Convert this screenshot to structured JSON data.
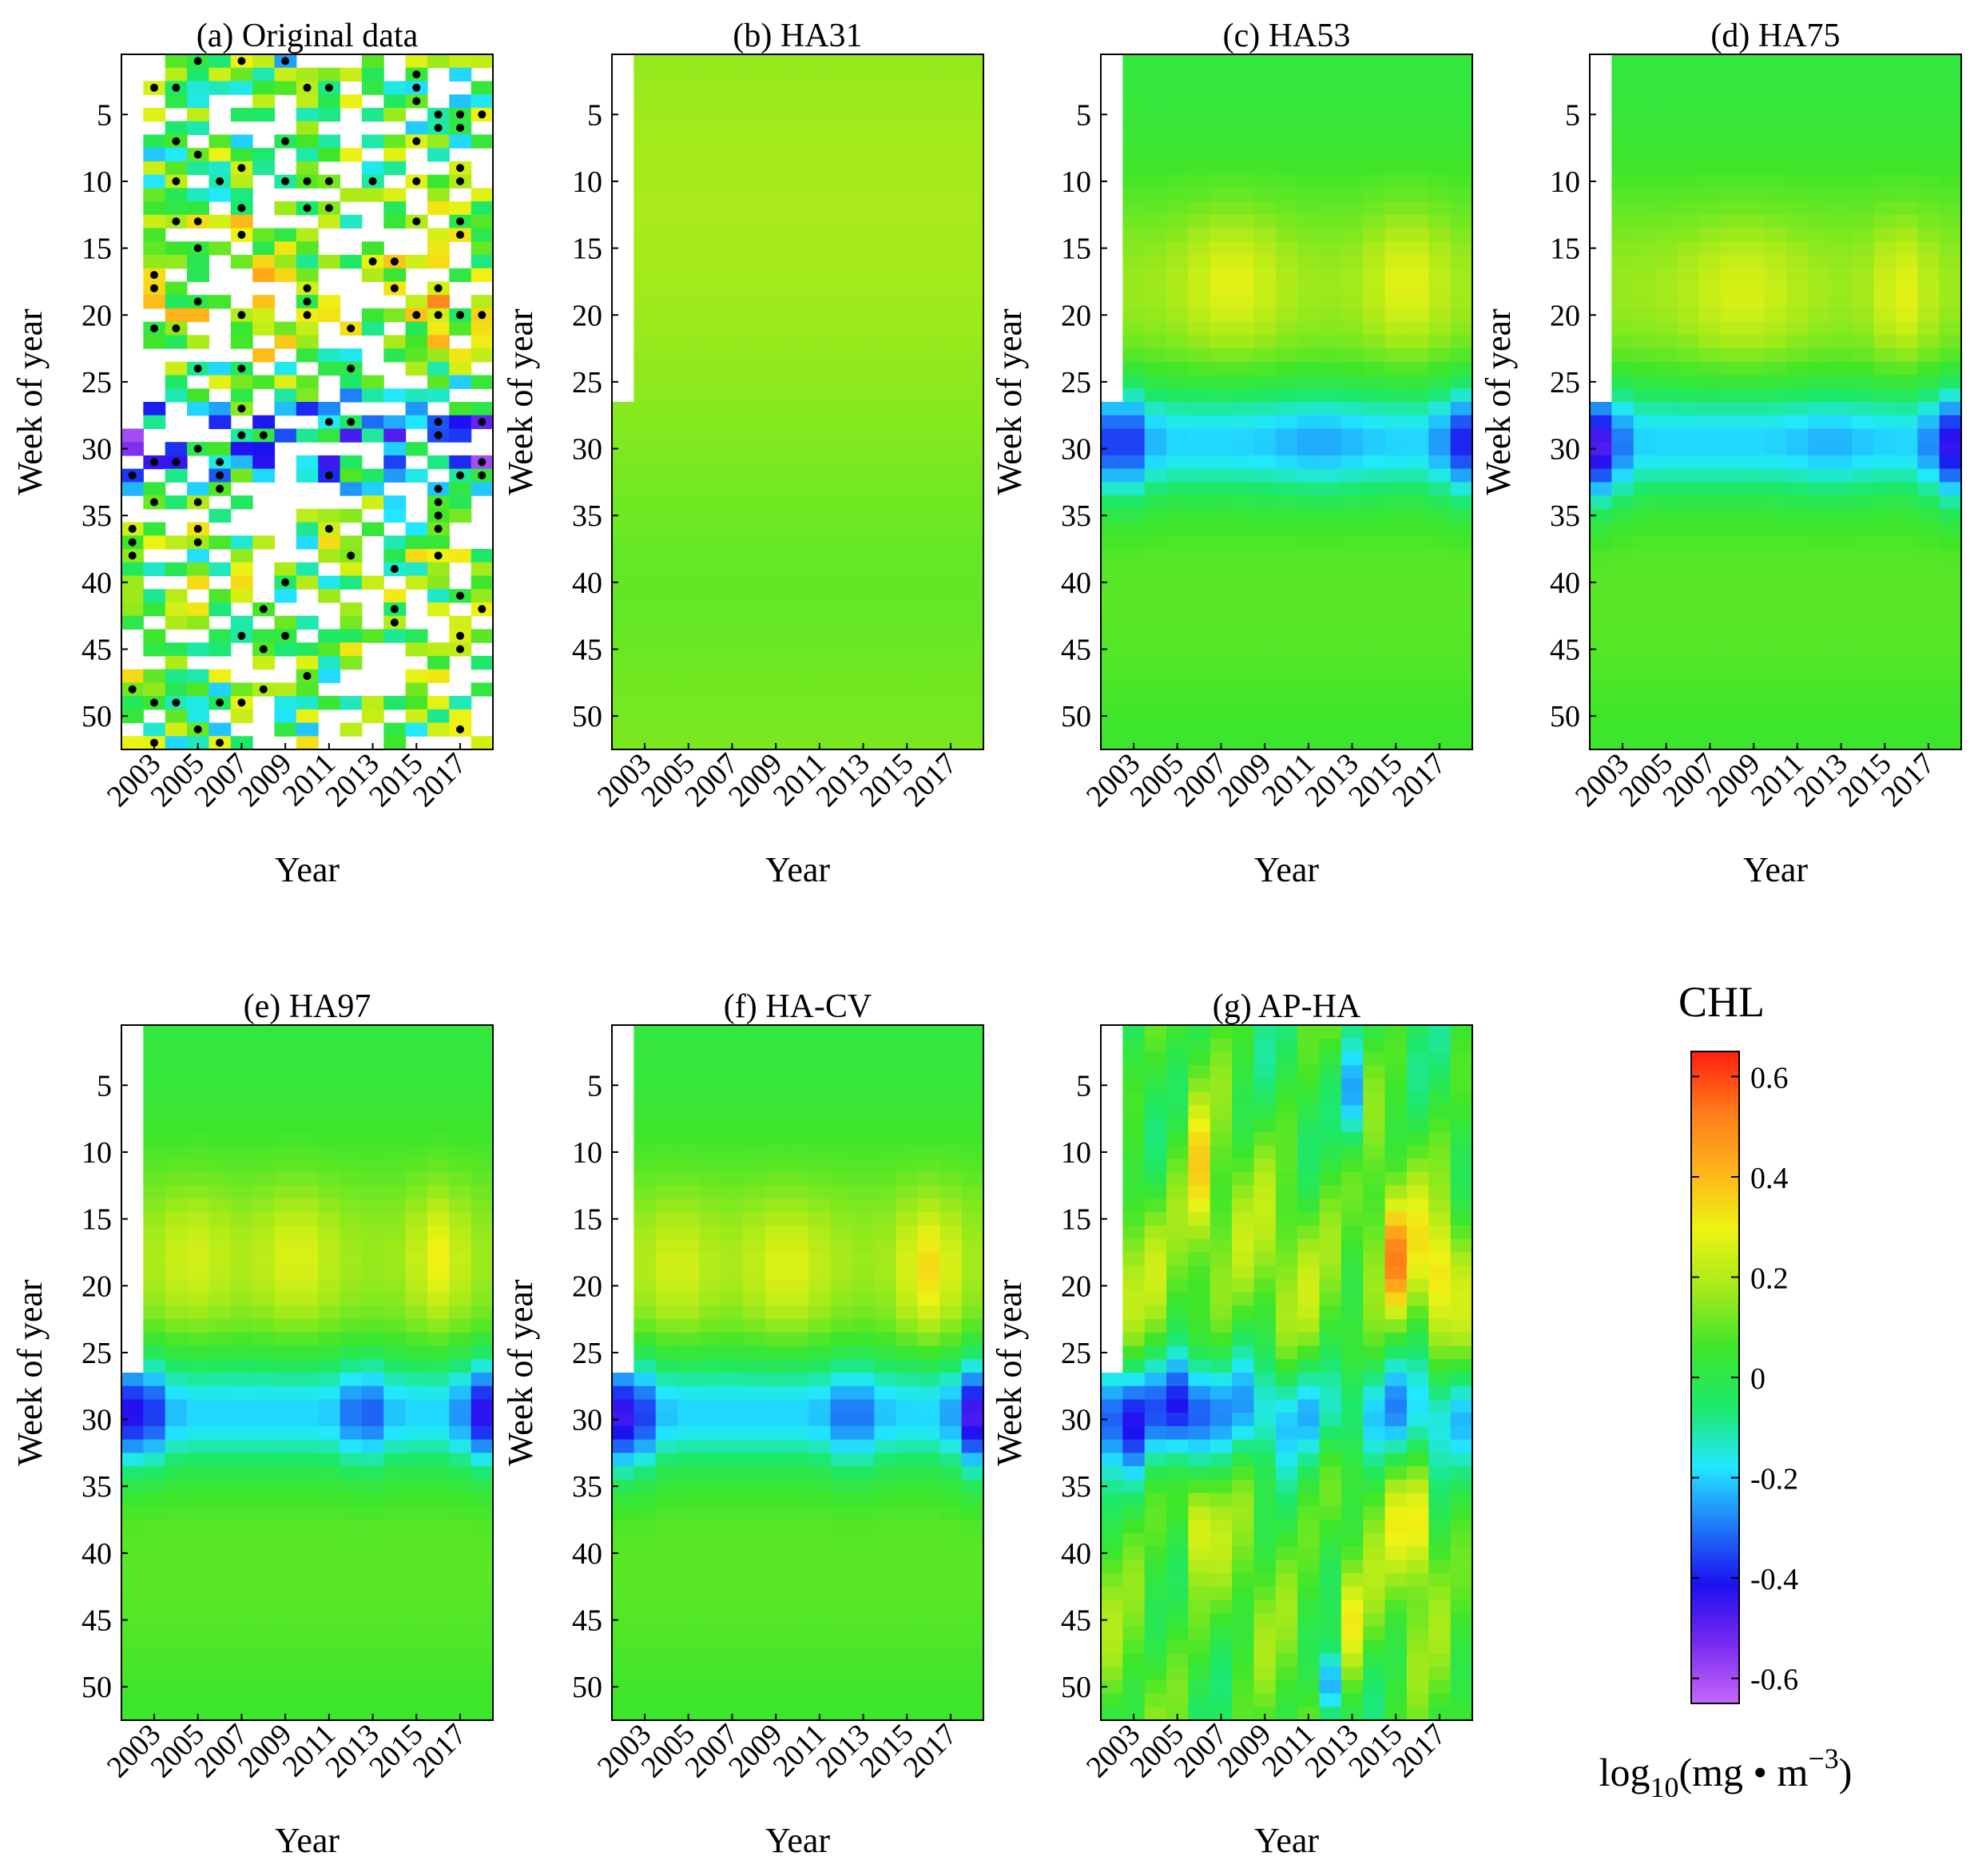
{
  "figure": {
    "xlabel": "Year",
    "ylabel": "Week of year",
    "year_ticks": [
      "2003",
      "2005",
      "2007",
      "2009",
      "2011",
      "2013",
      "2015",
      "2017"
    ],
    "week_ticks": [
      "5",
      "10",
      "15",
      "20",
      "25",
      "30",
      "35",
      "40",
      "45",
      "50"
    ]
  },
  "colorbar": {
    "title": "CHL",
    "unit_prefix": "log",
    "unit_sub": "10",
    "unit_main": "(mg • m",
    "unit_sup": "−3",
    "unit_close": ")",
    "range": [
      -0.65,
      0.65
    ],
    "ticks": [
      "0.6",
      "0.4",
      "0.2",
      "0",
      "-0.2",
      "-0.4",
      "-0.6"
    ],
    "tick_values": [
      0.6,
      0.4,
      0.2,
      0,
      -0.2,
      -0.4,
      -0.6
    ],
    "colors": [
      "#c468f8",
      "#7a2af0",
      "#1c10f0",
      "#1f7af8",
      "#22e8ff",
      "#1de86a",
      "#3ee62a",
      "#a6ea1a",
      "#eef314",
      "#ffb21a",
      "#ff7a1a",
      "#ff1e10"
    ]
  },
  "chart_data": [
    {
      "type": "heatmap",
      "id": "a",
      "title": "(a) Original data",
      "xlabel": "Year",
      "ylabel": "Week of year",
      "x_range": [
        2002,
        2018
      ],
      "y_range": [
        1,
        52
      ],
      "model": "original",
      "has_dots": true
    },
    {
      "type": "heatmap",
      "id": "b",
      "title": "(b) HA31",
      "xlabel": "Year",
      "ylabel": "Week of year",
      "x_range": [
        2002,
        2018
      ],
      "y_range": [
        1,
        52
      ],
      "model": "ha31",
      "has_dots": false
    },
    {
      "type": "heatmap",
      "id": "c",
      "title": "(c) HA53",
      "xlabel": "Year",
      "ylabel": "Week of year",
      "x_range": [
        2002,
        2018
      ],
      "y_range": [
        1,
        52
      ],
      "model": "ha53",
      "has_dots": false
    },
    {
      "type": "heatmap",
      "id": "d",
      "title": "(d) HA75",
      "xlabel": "Year",
      "ylabel": "Week of year",
      "x_range": [
        2002,
        2018
      ],
      "y_range": [
        1,
        52
      ],
      "model": "ha75",
      "has_dots": false
    },
    {
      "type": "heatmap",
      "id": "e",
      "title": "(e) HA97",
      "xlabel": "Year",
      "ylabel": "Week of year",
      "x_range": [
        2002,
        2018
      ],
      "y_range": [
        1,
        52
      ],
      "model": "ha97",
      "has_dots": false
    },
    {
      "type": "heatmap",
      "id": "f",
      "title": "(f) HA-CV",
      "xlabel": "Year",
      "ylabel": "Week of year",
      "x_range": [
        2002,
        2018
      ],
      "y_range": [
        1,
        52
      ],
      "model": "hacv",
      "has_dots": false
    },
    {
      "type": "heatmap",
      "id": "g",
      "title": "(g) AP-HA",
      "xlabel": "Year",
      "ylabel": "Week of year",
      "x_range": [
        2002,
        2018
      ],
      "y_range": [
        1,
        52
      ],
      "model": "apha",
      "has_dots": false
    }
  ]
}
